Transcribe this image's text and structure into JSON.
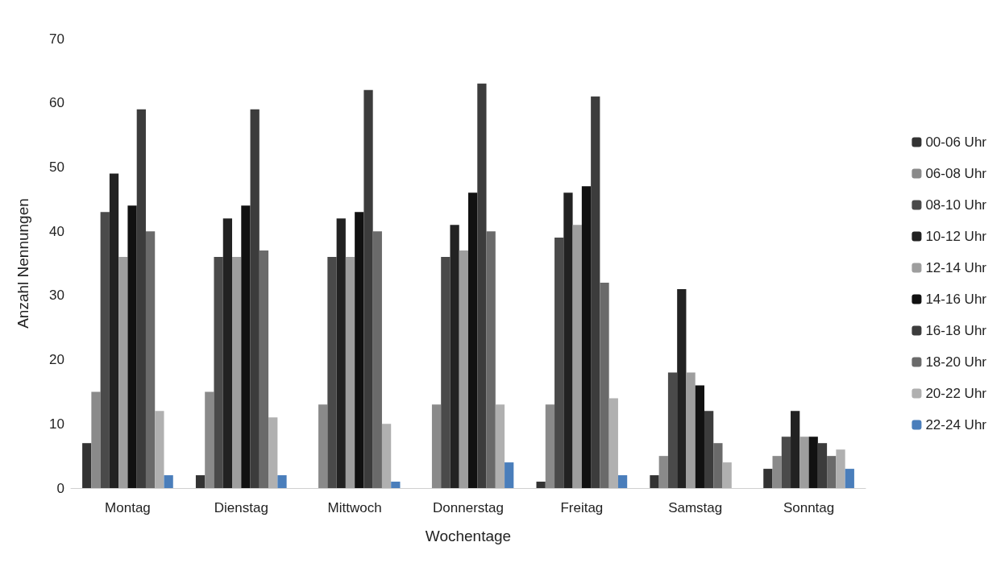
{
  "chart_data": {
    "type": "bar",
    "xlabel": "Wochentage",
    "ylabel": "Anzahl Nennungen",
    "categories": [
      "Montag",
      "Dienstag",
      "Mittwoch",
      "Donnerstag",
      "Freitag",
      "Samstag",
      "Sonntag"
    ],
    "series": [
      {
        "name": "00-06 Uhr",
        "color": "#333333",
        "values": [
          7,
          2,
          0,
          0,
          1,
          2,
          3
        ]
      },
      {
        "name": "06-08 Uhr",
        "color": "#8a8a8a",
        "values": [
          15,
          15,
          13,
          13,
          13,
          5,
          5
        ]
      },
      {
        "name": "08-10 Uhr",
        "color": "#4a4a4a",
        "values": [
          43,
          36,
          36,
          36,
          39,
          18,
          8
        ]
      },
      {
        "name": "10-12 Uhr",
        "color": "#222222",
        "values": [
          49,
          42,
          42,
          41,
          46,
          31,
          12
        ]
      },
      {
        "name": "12-14 Uhr",
        "color": "#9e9e9e",
        "values": [
          36,
          36,
          36,
          37,
          41,
          18,
          8
        ]
      },
      {
        "name": "14-16 Uhr",
        "color": "#111111",
        "values": [
          44,
          44,
          43,
          46,
          47,
          16,
          8
        ]
      },
      {
        "name": "16-18 Uhr",
        "color": "#3c3c3c",
        "values": [
          59,
          59,
          62,
          63,
          61,
          12,
          7
        ]
      },
      {
        "name": "18-20 Uhr",
        "color": "#6a6a6a",
        "values": [
          40,
          37,
          40,
          40,
          32,
          7,
          5
        ]
      },
      {
        "name": "20-22 Uhr",
        "color": "#b0b0b0",
        "values": [
          12,
          11,
          10,
          13,
          14,
          4,
          6
        ]
      },
      {
        "name": "22-24 Uhr",
        "color": "#4a7ebb",
        "values": [
          2,
          2,
          1,
          4,
          2,
          0,
          3
        ]
      }
    ],
    "ylim": [
      0,
      70
    ],
    "yticks": [
      0,
      10,
      20,
      30,
      40,
      50,
      60,
      70
    ],
    "grid": false,
    "legend": "right"
  }
}
